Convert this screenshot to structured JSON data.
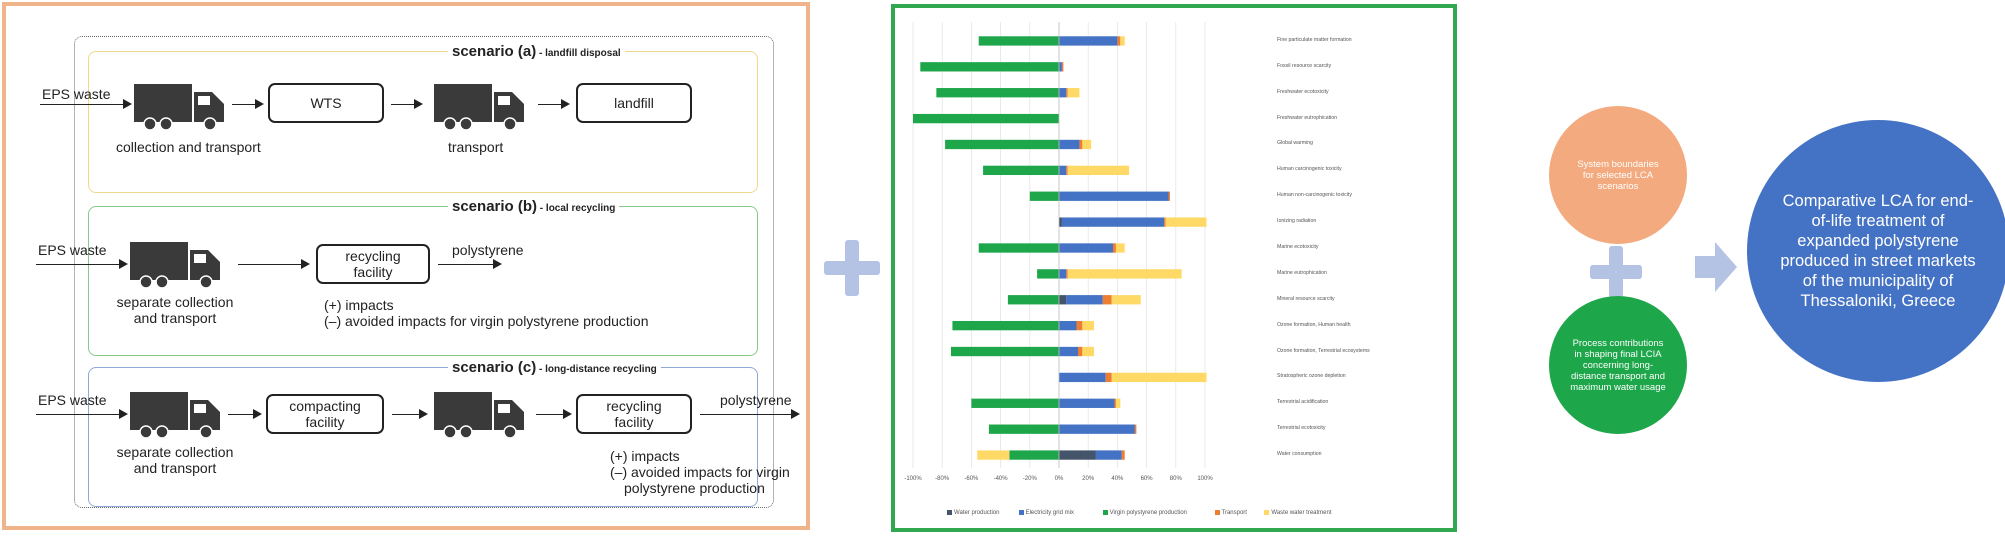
{
  "left_diagram": {
    "scenario_a": {
      "title": "scenario (a)",
      "subtitle": " - landfill disposal",
      "input": "EPS waste",
      "step1_label": "collection and transport",
      "box1": "WTS",
      "step2_label": "transport",
      "box2": "landfill"
    },
    "scenario_b": {
      "title": "scenario (b)",
      "subtitle": " - local recycling",
      "input": "EPS waste",
      "step1_label_line1": "separate collection",
      "step1_label_line2": "and transport",
      "box1_line1": "recycling",
      "box1_line2": "facility",
      "output": "polystyrene",
      "impacts_line1": "(+) impacts",
      "impacts_line2": "(–) avoided impacts for virgin polystyrene production"
    },
    "scenario_c": {
      "title": "scenario (c)",
      "subtitle": " - long-distance recycling",
      "input": "EPS waste",
      "step1_label_line1": "separate collection",
      "step1_label_line2": "and transport",
      "box1_line1": "compacting",
      "box1_line2": "facility",
      "box2_line1": "recycling",
      "box2_line2": "facility",
      "output": "polystyrene",
      "impacts_line1": "(+) impacts",
      "impacts_line2": "(–) avoided impacts for virgin",
      "impacts_line3": "polystyrene production"
    }
  },
  "chart_data": {
    "type": "bar",
    "orientation": "horizontal",
    "stacked": true,
    "categories": [
      "Fine particulate matter formation",
      "Fossil resource scarcity",
      "Freshwater ecotoxicity",
      "Freshwater eutrophication",
      "Global warming",
      "Human carcinogenic toxicity",
      "Human non-carcinogenic toxicity",
      "Ionizing radiation",
      "Marine ecotoxicity",
      "Marine eutrophication",
      "Mineral resource scarcity",
      "Ozone formation, Human health",
      "Ozone formation, Terrestrial ecosystems",
      "Stratospheric ozone depletion",
      "Terrestrial acidification",
      "Terrestrial ecotoxicity",
      "Water consumption"
    ],
    "series": [
      {
        "name": "Water production",
        "color": "#44546a",
        "values": [
          0,
          0,
          0,
          0,
          0,
          0,
          0,
          2,
          0,
          0,
          5,
          0,
          0,
          0,
          0,
          0,
          25
        ]
      },
      {
        "name": "Electricity grid mix",
        "color": "#4472c4",
        "values": [
          40,
          2,
          5,
          0,
          14,
          5,
          75,
          70,
          37,
          5,
          25,
          12,
          13,
          32,
          38,
          52,
          18
        ]
      },
      {
        "name": "Virgin polystyrene production",
        "color": "#1ea64a",
        "values": [
          -55,
          -95,
          -84,
          -100,
          -78,
          -52,
          -20,
          0,
          -55,
          -15,
          -35,
          -73,
          -74,
          0,
          -60,
          -48,
          -34
        ]
      },
      {
        "name": "Transport",
        "color": "#ed7d31",
        "values": [
          2,
          1,
          1,
          0,
          2,
          1,
          1,
          1,
          2,
          1,
          6,
          4,
          3,
          4,
          1,
          1,
          2
        ]
      },
      {
        "name": "Waste water treatment",
        "color": "#ffd966",
        "values": [
          3,
          0,
          8,
          0,
          6,
          42,
          0,
          28,
          6,
          78,
          20,
          8,
          8,
          65,
          3,
          0,
          0
        ]
      }
    ],
    "second_negative_series_values_note": "",
    "water_consumption_extra_negative": {
      "name": "Waste water treatment",
      "value": -22
    },
    "xlim": [
      -100,
      100
    ],
    "xticks": [
      "-100%",
      "-80%",
      "-60%",
      "-40%",
      "-20%",
      "0%",
      "20%",
      "40%",
      "60%",
      "80%",
      "100%"
    ],
    "legend_position": "bottom",
    "grid": true
  },
  "circles": {
    "boundaries": "System boundaries for selected LCA scenarios",
    "process": "Process contributions in shaping final LCIA concerning long-distance transport and maximum water usage",
    "main": "Comparative LCA for end-of-life treatment of expanded polystyrene produced in street markets of the municipality of Thessaloniki, Greece"
  },
  "colors": {
    "left_border": "#f0b48a",
    "chart_border": "#2fa84f",
    "plus": "#b4c3e3",
    "circle_orange": "#f3aa7e",
    "circle_green": "#1ea64a",
    "circle_blue": "#4472c4"
  }
}
